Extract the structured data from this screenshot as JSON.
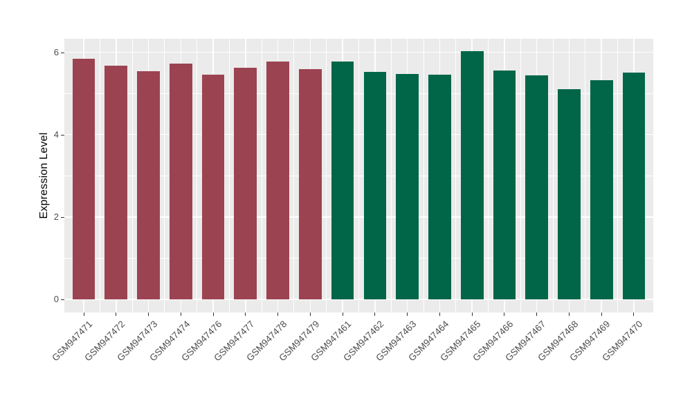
{
  "chart_data": {
    "type": "bar",
    "title": "",
    "xlabel": "",
    "ylabel": "Expression Level",
    "y_ticks": [
      0,
      2,
      4,
      6
    ],
    "y_minor_ticks": [
      1,
      3,
      5
    ],
    "ylim": [
      -0.32,
      6.33
    ],
    "grid": "on",
    "legend": "none",
    "bars": [
      {
        "label": "GSM947471",
        "value": 5.85,
        "group": "red"
      },
      {
        "label": "GSM947472",
        "value": 5.67,
        "group": "red"
      },
      {
        "label": "GSM947473",
        "value": 5.54,
        "group": "red"
      },
      {
        "label": "GSM947474",
        "value": 5.72,
        "group": "red"
      },
      {
        "label": "GSM947476",
        "value": 5.45,
        "group": "red"
      },
      {
        "label": "GSM947477",
        "value": 5.63,
        "group": "red"
      },
      {
        "label": "GSM947478",
        "value": 5.78,
        "group": "red"
      },
      {
        "label": "GSM947479",
        "value": 5.59,
        "group": "red"
      },
      {
        "label": "GSM947461",
        "value": 5.78,
        "group": "green"
      },
      {
        "label": "GSM947462",
        "value": 5.53,
        "group": "green"
      },
      {
        "label": "GSM947463",
        "value": 5.47,
        "group": "green"
      },
      {
        "label": "GSM947464",
        "value": 5.46,
        "group": "green"
      },
      {
        "label": "GSM947465",
        "value": 6.02,
        "group": "green"
      },
      {
        "label": "GSM947466",
        "value": 5.55,
        "group": "green"
      },
      {
        "label": "GSM947467",
        "value": 5.44,
        "group": "green"
      },
      {
        "label": "GSM947468",
        "value": 5.1,
        "group": "green"
      },
      {
        "label": "GSM947469",
        "value": 5.33,
        "group": "green"
      },
      {
        "label": "GSM947470",
        "value": 5.5,
        "group": "green"
      }
    ],
    "colors": {
      "red": "#9C4351",
      "green": "#006647",
      "panel_bg": "#EBEBEB",
      "grid_major": "#FFFFFF",
      "grid_minor": "#FFFFFF",
      "axis_text": "#4D4D4D",
      "axis_title": "#000000",
      "tick_mark": "#333333"
    }
  }
}
